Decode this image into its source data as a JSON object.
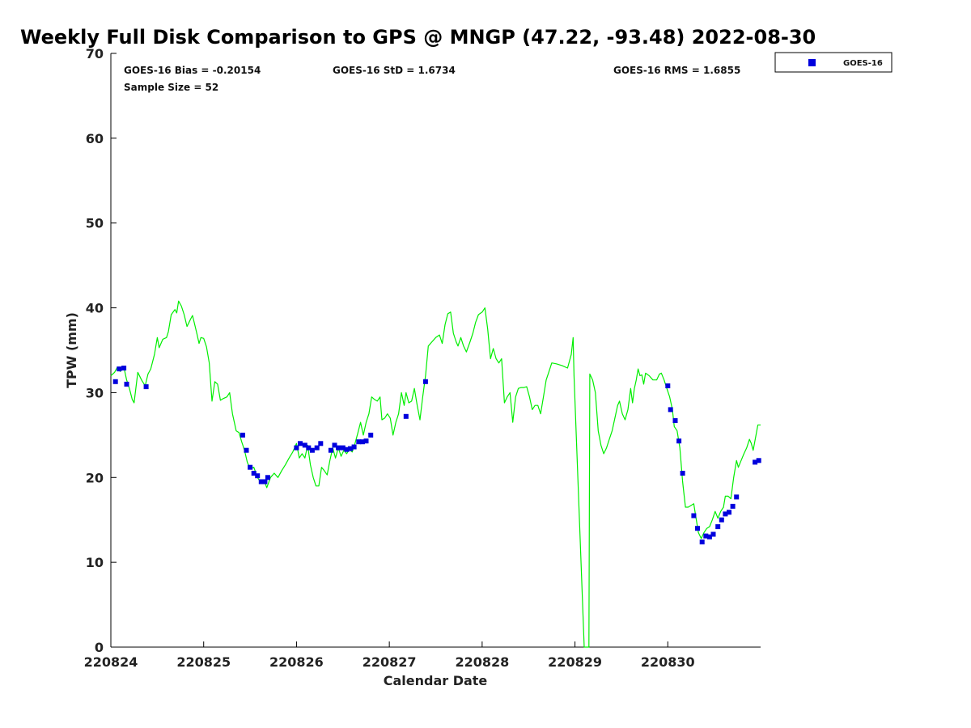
{
  "chart_data": {
    "type": "line",
    "title": "Weekly Full Disk Comparison to GPS @ MNGP (47.22, -93.48) 2022-08-30",
    "xlabel": "Calendar Date",
    "ylabel": "TPW (mm)",
    "xlim": [
      0,
      7
    ],
    "ylim": [
      0,
      70
    ],
    "x_tick_values": [
      0,
      1,
      2,
      3,
      4,
      5,
      6
    ],
    "x_tick_labels": [
      "220824",
      "220825",
      "220826",
      "220827",
      "220828",
      "220829",
      "220830"
    ],
    "y_ticks": [
      0,
      10,
      20,
      30,
      40,
      50,
      60,
      70
    ],
    "stats": {
      "bias": "GOES-16 Bias = -0.20154",
      "std": "GOES-16 StD = 1.6734",
      "rms": "GOES-16 RMS = 1.6855",
      "sample": "Sample Size = 52"
    },
    "legend": {
      "label": "GOES-16",
      "position": "top-right outside"
    },
    "colors": {
      "gps_line": "#00ee00",
      "goes_marker": "#0000dd",
      "axis": "#000000"
    },
    "series": [
      {
        "name": "GPS",
        "kind": "line",
        "points": [
          [
            0.0,
            32.0
          ],
          [
            0.04,
            32.4
          ],
          [
            0.07,
            33.0
          ],
          [
            0.1,
            32.5
          ],
          [
            0.14,
            33.0
          ],
          [
            0.17,
            31.5
          ],
          [
            0.2,
            30.5
          ],
          [
            0.23,
            29.2
          ],
          [
            0.25,
            28.8
          ],
          [
            0.29,
            32.4
          ],
          [
            0.33,
            31.5
          ],
          [
            0.37,
            30.8
          ],
          [
            0.4,
            32.2
          ],
          [
            0.43,
            32.8
          ],
          [
            0.47,
            34.5
          ],
          [
            0.5,
            36.5
          ],
          [
            0.52,
            35.3
          ],
          [
            0.56,
            36.3
          ],
          [
            0.6,
            36.5
          ],
          [
            0.62,
            37.2
          ],
          [
            0.65,
            39.2
          ],
          [
            0.69,
            39.8
          ],
          [
            0.71,
            39.4
          ],
          [
            0.73,
            40.8
          ],
          [
            0.76,
            40.2
          ],
          [
            0.79,
            39.2
          ],
          [
            0.82,
            37.8
          ],
          [
            0.86,
            38.7
          ],
          [
            0.88,
            39.1
          ],
          [
            0.9,
            38.2
          ],
          [
            0.93,
            36.8
          ],
          [
            0.95,
            35.8
          ],
          [
            0.97,
            36.5
          ],
          [
            1.0,
            36.4
          ],
          [
            1.03,
            35.4
          ],
          [
            1.06,
            33.5
          ],
          [
            1.09,
            29.0
          ],
          [
            1.12,
            31.3
          ],
          [
            1.15,
            31.0
          ],
          [
            1.18,
            29.1
          ],
          [
            1.21,
            29.3
          ],
          [
            1.25,
            29.5
          ],
          [
            1.28,
            30.0
          ],
          [
            1.31,
            27.5
          ],
          [
            1.35,
            25.5
          ],
          [
            1.38,
            25.3
          ],
          [
            1.41,
            24.2
          ],
          [
            1.44,
            23.2
          ],
          [
            1.47,
            21.8
          ],
          [
            1.5,
            21.0
          ],
          [
            1.54,
            21.2
          ],
          [
            1.58,
            20.0
          ],
          [
            1.61,
            19.5
          ],
          [
            1.65,
            19.7
          ],
          [
            1.68,
            18.8
          ],
          [
            1.72,
            20.0
          ],
          [
            1.76,
            20.5
          ],
          [
            1.8,
            20.0
          ],
          [
            1.84,
            20.8
          ],
          [
            1.88,
            21.5
          ],
          [
            1.92,
            22.3
          ],
          [
            1.96,
            23.0
          ],
          [
            2.0,
            24.0
          ],
          [
            2.03,
            22.3
          ],
          [
            2.06,
            22.8
          ],
          [
            2.09,
            22.3
          ],
          [
            2.12,
            23.8
          ],
          [
            2.15,
            21.5
          ],
          [
            2.18,
            20.0
          ],
          [
            2.21,
            19.0
          ],
          [
            2.24,
            19.0
          ],
          [
            2.27,
            21.2
          ],
          [
            2.3,
            20.8
          ],
          [
            2.33,
            20.3
          ],
          [
            2.36,
            22.0
          ],
          [
            2.39,
            23.5
          ],
          [
            2.42,
            22.3
          ],
          [
            2.45,
            23.5
          ],
          [
            2.48,
            22.5
          ],
          [
            2.51,
            23.2
          ],
          [
            2.54,
            22.8
          ],
          [
            2.57,
            23.3
          ],
          [
            2.6,
            23.0
          ],
          [
            2.63,
            24.0
          ],
          [
            2.66,
            25.2
          ],
          [
            2.69,
            26.5
          ],
          [
            2.72,
            25.0
          ],
          [
            2.75,
            26.5
          ],
          [
            2.78,
            27.5
          ],
          [
            2.81,
            29.5
          ],
          [
            2.84,
            29.2
          ],
          [
            2.87,
            29.0
          ],
          [
            2.9,
            29.5
          ],
          [
            2.92,
            26.8
          ],
          [
            2.95,
            27.0
          ],
          [
            2.98,
            27.5
          ],
          [
            3.01,
            27.0
          ],
          [
            3.04,
            25.0
          ],
          [
            3.07,
            26.5
          ],
          [
            3.1,
            27.5
          ],
          [
            3.13,
            30.0
          ],
          [
            3.16,
            28.5
          ],
          [
            3.18,
            30.0
          ],
          [
            3.21,
            28.8
          ],
          [
            3.24,
            29.0
          ],
          [
            3.27,
            30.5
          ],
          [
            3.3,
            28.5
          ],
          [
            3.33,
            26.8
          ],
          [
            3.36,
            29.5
          ],
          [
            3.39,
            32.0
          ],
          [
            3.42,
            35.5
          ],
          [
            3.46,
            36.0
          ],
          [
            3.5,
            36.5
          ],
          [
            3.54,
            36.8
          ],
          [
            3.57,
            35.8
          ],
          [
            3.6,
            38.0
          ],
          [
            3.63,
            39.3
          ],
          [
            3.66,
            39.5
          ],
          [
            3.69,
            37.0
          ],
          [
            3.72,
            36.0
          ],
          [
            3.74,
            35.5
          ],
          [
            3.77,
            36.5
          ],
          [
            3.8,
            35.5
          ],
          [
            3.83,
            34.8
          ],
          [
            3.87,
            36.0
          ],
          [
            3.9,
            37.0
          ],
          [
            3.93,
            38.3
          ],
          [
            3.96,
            39.2
          ],
          [
            4.0,
            39.5
          ],
          [
            4.03,
            40.0
          ],
          [
            4.06,
            37.5
          ],
          [
            4.09,
            34.0
          ],
          [
            4.12,
            35.2
          ],
          [
            4.15,
            34.0
          ],
          [
            4.18,
            33.5
          ],
          [
            4.21,
            34.0
          ],
          [
            4.24,
            28.8
          ],
          [
            4.27,
            29.5
          ],
          [
            4.3,
            30.0
          ],
          [
            4.33,
            26.5
          ],
          [
            4.36,
            29.5
          ],
          [
            4.39,
            30.5
          ],
          [
            4.42,
            30.6
          ],
          [
            4.45,
            30.6
          ],
          [
            4.48,
            30.7
          ],
          [
            4.51,
            29.5
          ],
          [
            4.54,
            28.0
          ],
          [
            4.57,
            28.5
          ],
          [
            4.6,
            28.5
          ],
          [
            4.63,
            27.5
          ],
          [
            4.66,
            29.5
          ],
          [
            4.69,
            31.5
          ],
          [
            4.72,
            32.5
          ],
          [
            4.75,
            33.5
          ],
          [
            4.8,
            33.4
          ],
          [
            4.86,
            33.2
          ],
          [
            4.92,
            32.9
          ],
          [
            4.96,
            34.5
          ],
          [
            4.98,
            36.5
          ],
          [
            4.99,
            32.0
          ],
          [
            5.1,
            0.0
          ],
          [
            5.15,
            0.0
          ],
          [
            5.16,
            32.2
          ],
          [
            5.19,
            31.5
          ],
          [
            5.22,
            30.0
          ],
          [
            5.25,
            25.5
          ],
          [
            5.28,
            23.8
          ],
          [
            5.31,
            22.8
          ],
          [
            5.34,
            23.5
          ],
          [
            5.37,
            24.5
          ],
          [
            5.4,
            25.5
          ],
          [
            5.43,
            27.0
          ],
          [
            5.46,
            28.5
          ],
          [
            5.48,
            29.0
          ],
          [
            5.51,
            27.5
          ],
          [
            5.54,
            26.8
          ],
          [
            5.57,
            28.0
          ],
          [
            5.6,
            30.5
          ],
          [
            5.62,
            28.8
          ],
          [
            5.64,
            30.5
          ],
          [
            5.66,
            31.5
          ],
          [
            5.68,
            32.8
          ],
          [
            5.7,
            32.0
          ],
          [
            5.72,
            32.1
          ],
          [
            5.74,
            31.0
          ],
          [
            5.76,
            32.3
          ],
          [
            5.8,
            32.0
          ],
          [
            5.84,
            31.5
          ],
          [
            5.88,
            31.5
          ],
          [
            5.91,
            32.2
          ],
          [
            5.93,
            32.3
          ],
          [
            5.96,
            31.5
          ],
          [
            5.99,
            30.5
          ],
          [
            6.02,
            29.5
          ],
          [
            6.05,
            28.0
          ],
          [
            6.07,
            26.0
          ],
          [
            6.1,
            25.5
          ],
          [
            6.13,
            23.5
          ],
          [
            6.16,
            19.5
          ],
          [
            6.19,
            16.5
          ],
          [
            6.22,
            16.5
          ],
          [
            6.25,
            16.7
          ],
          [
            6.28,
            16.9
          ],
          [
            6.3,
            15.5
          ],
          [
            6.33,
            13.5
          ],
          [
            6.36,
            12.8
          ],
          [
            6.39,
            13.5
          ],
          [
            6.42,
            14.0
          ],
          [
            6.45,
            14.2
          ],
          [
            6.48,
            15.0
          ],
          [
            6.51,
            16.0
          ],
          [
            6.54,
            15.2
          ],
          [
            6.57,
            16.0
          ],
          [
            6.6,
            16.5
          ],
          [
            6.62,
            17.8
          ],
          [
            6.65,
            17.8
          ],
          [
            6.68,
            17.5
          ],
          [
            6.71,
            20.0
          ],
          [
            6.74,
            22.0
          ],
          [
            6.76,
            21.2
          ],
          [
            6.79,
            22.0
          ],
          [
            6.82,
            22.8
          ],
          [
            6.85,
            23.5
          ],
          [
            6.88,
            24.5
          ],
          [
            6.9,
            24.0
          ],
          [
            6.92,
            23.2
          ],
          [
            6.95,
            25.0
          ],
          [
            6.97,
            26.2
          ],
          [
            7.0,
            26.2
          ]
        ]
      },
      {
        "name": "GOES-16",
        "kind": "marker",
        "points": [
          [
            0.05,
            31.3
          ],
          [
            0.09,
            32.8
          ],
          [
            0.14,
            32.9
          ],
          [
            0.17,
            31.0
          ],
          [
            0.38,
            30.7
          ],
          [
            1.42,
            25.0
          ],
          [
            1.46,
            23.2
          ],
          [
            1.5,
            21.2
          ],
          [
            1.54,
            20.5
          ],
          [
            1.58,
            20.2
          ],
          [
            1.62,
            19.5
          ],
          [
            1.66,
            19.5
          ],
          [
            1.69,
            20.0
          ],
          [
            2.0,
            23.5
          ],
          [
            2.04,
            24.0
          ],
          [
            2.09,
            23.8
          ],
          [
            2.13,
            23.5
          ],
          [
            2.17,
            23.2
          ],
          [
            2.22,
            23.5
          ],
          [
            2.26,
            24.0
          ],
          [
            2.37,
            23.2
          ],
          [
            2.41,
            23.8
          ],
          [
            2.45,
            23.5
          ],
          [
            2.5,
            23.5
          ],
          [
            2.54,
            23.3
          ],
          [
            2.58,
            23.4
          ],
          [
            2.62,
            23.6
          ],
          [
            2.67,
            24.2
          ],
          [
            2.71,
            24.2
          ],
          [
            2.75,
            24.3
          ],
          [
            2.8,
            25.0
          ],
          [
            3.18,
            27.2
          ],
          [
            3.39,
            31.3
          ],
          [
            6.0,
            30.8
          ],
          [
            6.03,
            28.0
          ],
          [
            6.08,
            26.7
          ],
          [
            6.12,
            24.3
          ],
          [
            6.16,
            20.5
          ],
          [
            6.28,
            15.5
          ],
          [
            6.32,
            14.0
          ],
          [
            6.37,
            12.4
          ],
          [
            6.41,
            13.1
          ],
          [
            6.45,
            13.0
          ],
          [
            6.49,
            13.3
          ],
          [
            6.54,
            14.2
          ],
          [
            6.58,
            15.0
          ],
          [
            6.62,
            15.7
          ],
          [
            6.66,
            15.9
          ],
          [
            6.7,
            16.6
          ],
          [
            6.74,
            17.7
          ],
          [
            6.94,
            21.8
          ],
          [
            6.98,
            22.0
          ]
        ]
      }
    ]
  }
}
